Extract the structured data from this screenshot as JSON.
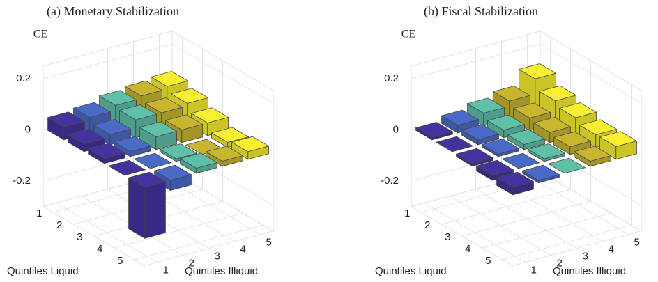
{
  "chart_data": [
    {
      "type": "bar3d",
      "title": "(a) Monetary Stabilization",
      "zlabel": "CE",
      "xlabel": "Quintiles Liquid",
      "ylabel": "Quintiles Illiquid",
      "xlim": [
        0.5,
        5.5
      ],
      "xticks": [
        1,
        2,
        3,
        4,
        5
      ],
      "ylim": [
        0.5,
        5.5
      ],
      "yticks": [
        1,
        2,
        3,
        4,
        5
      ],
      "zlim": [
        -0.3,
        0.25
      ],
      "zticks": [
        -0.2,
        0,
        0.2
      ],
      "grid": true,
      "series": [
        {
          "color": "#44339e",
          "values": [
            0.05,
            0.03,
            0.02,
            0.0,
            -0.2
          ]
        },
        {
          "color": "#4a6ac8",
          "values": [
            0.06,
            0.04,
            0.02,
            0.0,
            -0.04
          ]
        },
        {
          "color": "#5fc0a8",
          "values": [
            0.08,
            0.07,
            0.05,
            0.01,
            0.02
          ]
        },
        {
          "color": "#c8b72e",
          "values": [
            0.09,
            0.07,
            0.05,
            0.0,
            0.02
          ]
        },
        {
          "color": "#f7ef2f",
          "values": [
            0.1,
            0.08,
            0.05,
            0.02,
            0.03
          ]
        }
      ]
    },
    {
      "type": "bar3d",
      "title": "(b) Fiscal Stabilization",
      "zlabel": "CE",
      "xlabel": "Quintiles Liquid",
      "ylabel": "Quintiles Illiquid",
      "xlim": [
        0.5,
        5.5
      ],
      "xticks": [
        1,
        2,
        3,
        4,
        5
      ],
      "ylim": [
        0.5,
        5.5
      ],
      "yticks": [
        1,
        2,
        3,
        4,
        5
      ],
      "zlim": [
        -0.3,
        0.25
      ],
      "zticks": [
        -0.2,
        0,
        0.2
      ],
      "grid": true,
      "series": [
        {
          "color": "#44339e",
          "values": [
            0.01,
            0.0,
            -0.01,
            -0.02,
            -0.03
          ]
        },
        {
          "color": "#4a6ac8",
          "values": [
            0.03,
            0.02,
            0.01,
            0.0,
            -0.01
          ]
        },
        {
          "color": "#5fc0a8",
          "values": [
            0.05,
            0.03,
            0.02,
            0.01,
            0.0
          ]
        },
        {
          "color": "#c8b72e",
          "values": [
            0.07,
            0.05,
            0.04,
            0.03,
            0.02
          ]
        },
        {
          "color": "#f7ef2f",
          "values": [
            0.13,
            0.09,
            0.07,
            0.05,
            0.05
          ]
        }
      ]
    }
  ]
}
